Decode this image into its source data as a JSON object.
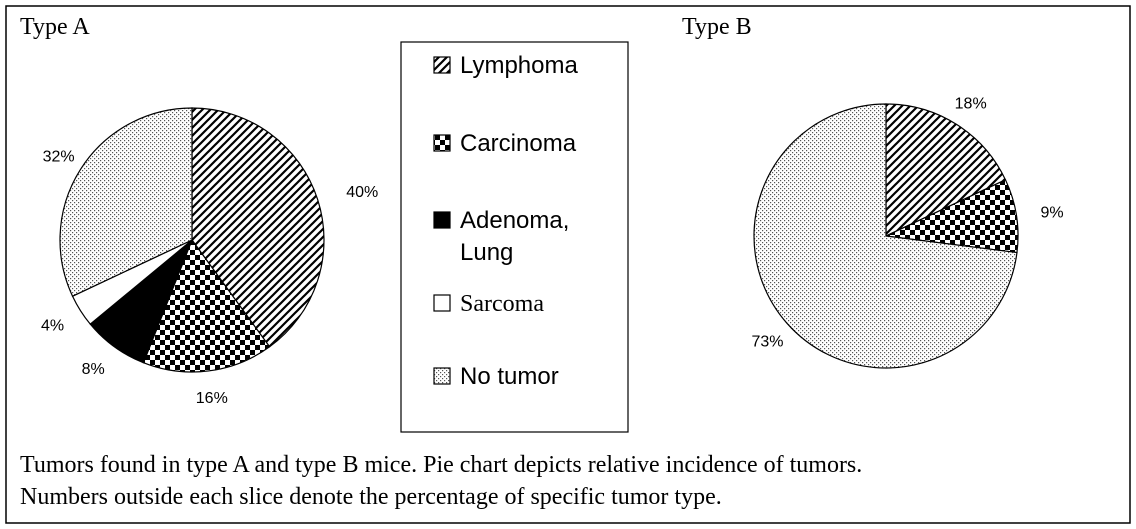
{
  "chart_data": [
    {
      "type": "pie",
      "title": "Type A",
      "slices": [
        {
          "label": "Lymphoma",
          "value": 40,
          "display": "40%",
          "pattern": "diagonal-hatch"
        },
        {
          "label": "Carcinoma",
          "value": 16,
          "display": "16%",
          "pattern": "checkerboard"
        },
        {
          "label": "Adenoma, Lung",
          "value": 8,
          "display": "8%",
          "pattern": "solid-black"
        },
        {
          "label": "Sarcoma",
          "value": 4,
          "display": "4%",
          "pattern": "white"
        },
        {
          "label": "No tumor",
          "value": 32,
          "display": "32%",
          "pattern": "dots"
        }
      ]
    },
    {
      "type": "pie",
      "title": "Type B",
      "slices": [
        {
          "label": "Lymphoma",
          "value": 18,
          "display": "18%",
          "pattern": "diagonal-hatch"
        },
        {
          "label": "Carcinoma",
          "value": 9,
          "display": "9%",
          "pattern": "checkerboard"
        },
        {
          "label": "No tumor",
          "value": 73,
          "display": "73%",
          "pattern": "dots"
        }
      ]
    }
  ],
  "legend": [
    {
      "label": "Lymphoma",
      "pattern": "diagonal-hatch"
    },
    {
      "label": "Carcinoma",
      "pattern": "checkerboard"
    },
    {
      "label": "Adenoma, Lung",
      "pattern": "solid-black"
    },
    {
      "label": "Sarcoma",
      "pattern": "white"
    },
    {
      "label": "No tumor",
      "pattern": "dots"
    }
  ],
  "caption": {
    "line1": "Tumors found in type A and type B mice. Pie chart depicts relative incidence of tumors.",
    "line2": "Numbers outside each slice denote the percentage of specific tumor type."
  },
  "colors": {
    "ink": "#000000",
    "background": "#ffffff"
  }
}
